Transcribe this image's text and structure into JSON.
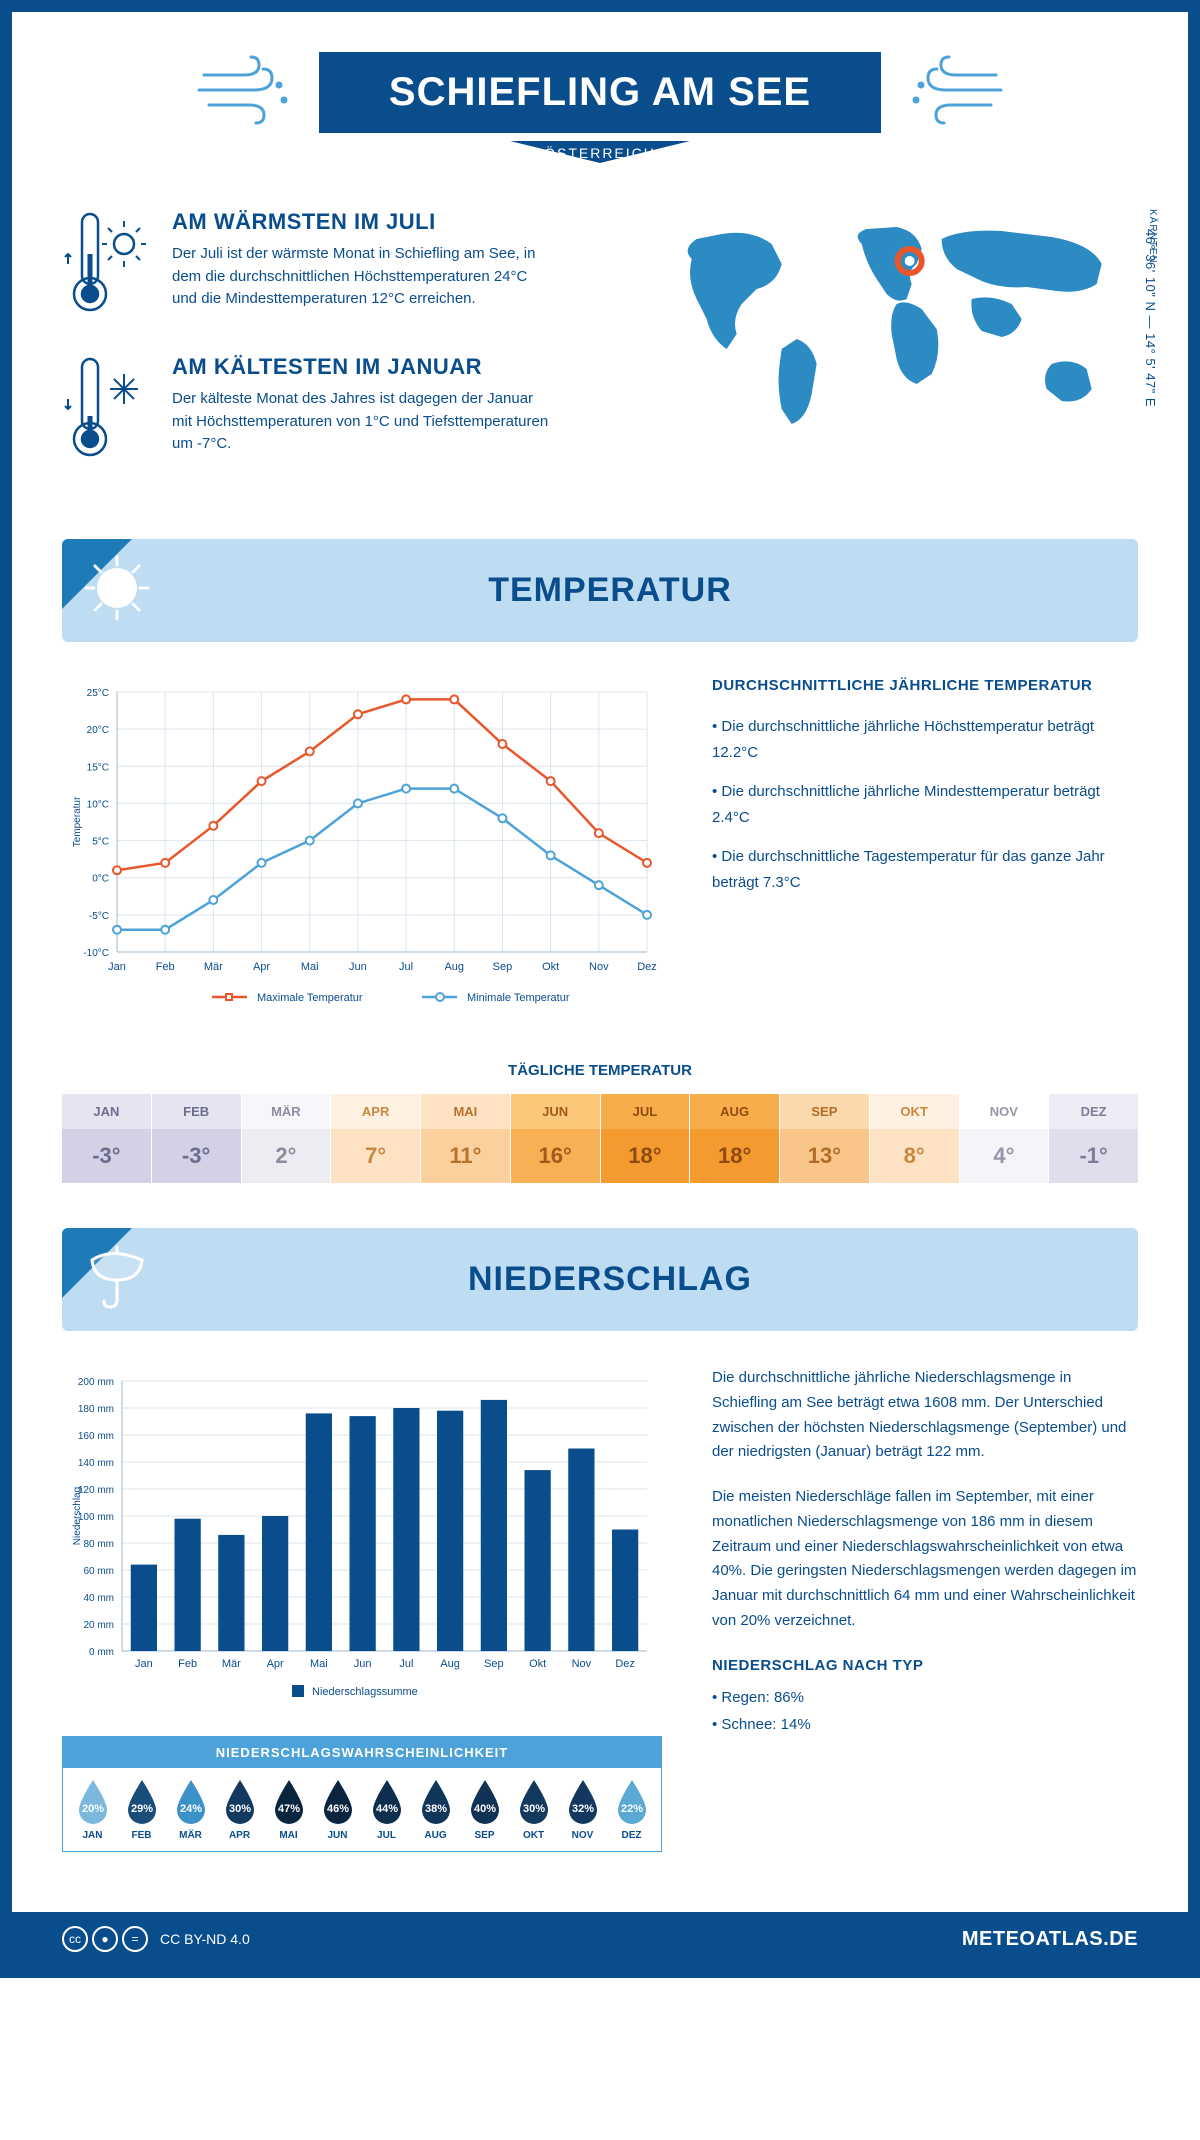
{
  "title": "SCHIEFLING AM SEE",
  "country": "ÖSTERREICH",
  "region": "KÄRNTEN",
  "coordinates": "46° 36' 10\" N — 14° 5' 47\" E",
  "colors": {
    "primary": "#0a4d8c",
    "light_blue": "#4da3d9",
    "banner_bg": "#bfddf2",
    "max_line": "#e8572c",
    "min_line": "#4da3d9",
    "bar": "#0a4d8c",
    "grid": "#dce5ed"
  },
  "warmest": {
    "title": "AM WÄRMSTEN IM JULI",
    "text": "Der Juli ist der wärmste Monat in Schiefling am See, in dem die durchschnittlichen Höchsttemperaturen 24°C und die Mindesttemperaturen 12°C erreichen."
  },
  "coldest": {
    "title": "AM KÄLTESTEN IM JANUAR",
    "text": "Der kälteste Monat des Jahres ist dagegen der Januar mit Höchsttemperaturen von 1°C und Tiefsttemperaturen um -7°C."
  },
  "temperature_section": "TEMPERATUR",
  "temp_chart": {
    "ylabel": "Temperatur",
    "ymin": -10,
    "ymax": 25,
    "ystep": 5,
    "months": [
      "Jan",
      "Feb",
      "Mär",
      "Apr",
      "Mai",
      "Jun",
      "Jul",
      "Aug",
      "Sep",
      "Okt",
      "Nov",
      "Dez"
    ],
    "max": [
      1,
      2,
      7,
      13,
      17,
      22,
      24,
      24,
      18,
      13,
      6,
      2
    ],
    "min": [
      -7,
      -7,
      -3,
      2,
      5,
      10,
      12,
      12,
      8,
      3,
      -1,
      -5
    ],
    "legend_max": "Maximale Temperatur",
    "legend_min": "Minimale Temperatur"
  },
  "temp_facts": {
    "title": "DURCHSCHNITTLICHE JÄHRLICHE TEMPERATUR",
    "b1": "• Die durchschnittliche jährliche Höchsttemperatur beträgt 12.2°C",
    "b2": "• Die durchschnittliche jährliche Mindesttemperatur beträgt 2.4°C",
    "b3": "• Die durchschnittliche Tagestemperatur für das ganze Jahr beträgt 7.3°C"
  },
  "daily_label": "TÄGLICHE TEMPERATUR",
  "daily": [
    {
      "m": "JAN",
      "v": "-3°",
      "hbg": "#e6e4f0",
      "vbg": "#d4d0e6",
      "tc": "#6b6d8f"
    },
    {
      "m": "FEB",
      "v": "-3°",
      "hbg": "#e6e4f0",
      "vbg": "#d4d0e6",
      "tc": "#6b6d8f"
    },
    {
      "m": "MÄR",
      "v": "2°",
      "hbg": "#f7f6fa",
      "vbg": "#edecf3",
      "tc": "#8b8da3"
    },
    {
      "m": "APR",
      "v": "7°",
      "hbg": "#fef1e2",
      "vbg": "#fde3c4",
      "tc": "#c9883f"
    },
    {
      "m": "MAI",
      "v": "11°",
      "hbg": "#fde3c4",
      "vbg": "#fbd09d",
      "tc": "#b8722c"
    },
    {
      "m": "JUN",
      "v": "16°",
      "hbg": "#fac878",
      "vbg": "#f7b054",
      "tc": "#a35a1a"
    },
    {
      "m": "JUL",
      "v": "18°",
      "hbg": "#f7ae4a",
      "vbg": "#f49a2e",
      "tc": "#8f4a12"
    },
    {
      "m": "AUG",
      "v": "18°",
      "hbg": "#f7ae4a",
      "vbg": "#f49a2e",
      "tc": "#8f4a12"
    },
    {
      "m": "SEP",
      "v": "13°",
      "hbg": "#fcd9ad",
      "vbg": "#fac589",
      "tc": "#b06d28"
    },
    {
      "m": "OKT",
      "v": "8°",
      "hbg": "#fef1e2",
      "vbg": "#fde3c4",
      "tc": "#c9883f"
    },
    {
      "m": "NOV",
      "v": "4°",
      "hbg": "#ffffff",
      "vbg": "#f5f4f8",
      "tc": "#9596aa"
    },
    {
      "m": "DEZ",
      "v": "-1°",
      "hbg": "#eeecf4",
      "vbg": "#e0ddec",
      "tc": "#7b7d99"
    }
  ],
  "precip_section": "NIEDERSCHLAG",
  "precip_chart": {
    "ylabel": "Niederschlag",
    "ymin": 0,
    "ymax": 200,
    "ystep": 20,
    "months": [
      "Jan",
      "Feb",
      "Mär",
      "Apr",
      "Mai",
      "Jun",
      "Jul",
      "Aug",
      "Sep",
      "Okt",
      "Nov",
      "Dez"
    ],
    "values": [
      64,
      98,
      86,
      100,
      176,
      174,
      180,
      178,
      186,
      134,
      150,
      90
    ],
    "legend": "Niederschlagssumme"
  },
  "precip_text": {
    "p1": "Die durchschnittliche jährliche Niederschlagsmenge in Schiefling am See beträgt etwa 1608 mm. Der Unterschied zwischen der höchsten Niederschlagsmenge (September) und der niedrigsten (Januar) beträgt 122 mm.",
    "p2": "Die meisten Niederschläge fallen im September, mit einer monatlichen Niederschlagsmenge von 186 mm in diesem Zeitraum und einer Niederschlagswahrscheinlichkeit von etwa 40%. Die geringsten Niederschlagsmengen werden dagegen im Januar mit durchschnittlich 64 mm und einer Wahrscheinlichkeit von 20% verzeichnet.",
    "type_title": "NIEDERSCHLAG NACH TYP",
    "type1": "• Regen: 86%",
    "type2": "• Schnee: 14%"
  },
  "prob_title": "NIEDERSCHLAGSWAHRSCHEINLICHKEIT",
  "probability": [
    {
      "m": "JAN",
      "v": "20%",
      "c": "#7ab8de"
    },
    {
      "m": "FEB",
      "v": "29%",
      "c": "#1a4d7a"
    },
    {
      "m": "MÄR",
      "v": "24%",
      "c": "#3a92c8"
    },
    {
      "m": "APR",
      "v": "30%",
      "c": "#13395e"
    },
    {
      "m": "MAI",
      "v": "47%",
      "c": "#0a2540"
    },
    {
      "m": "JUN",
      "v": "46%",
      "c": "#0a2540"
    },
    {
      "m": "JUL",
      "v": "44%",
      "c": "#0d2e4d"
    },
    {
      "m": "AUG",
      "v": "38%",
      "c": "#10365a"
    },
    {
      "m": "SEP",
      "v": "40%",
      "c": "#0f3255"
    },
    {
      "m": "OKT",
      "v": "30%",
      "c": "#13395e"
    },
    {
      "m": "NOV",
      "v": "32%",
      "c": "#123860"
    },
    {
      "m": "DEZ",
      "v": "22%",
      "c": "#5aa8d4"
    }
  ],
  "footer": {
    "license": "CC BY-ND 4.0",
    "site": "METEOATLAS.DE"
  }
}
